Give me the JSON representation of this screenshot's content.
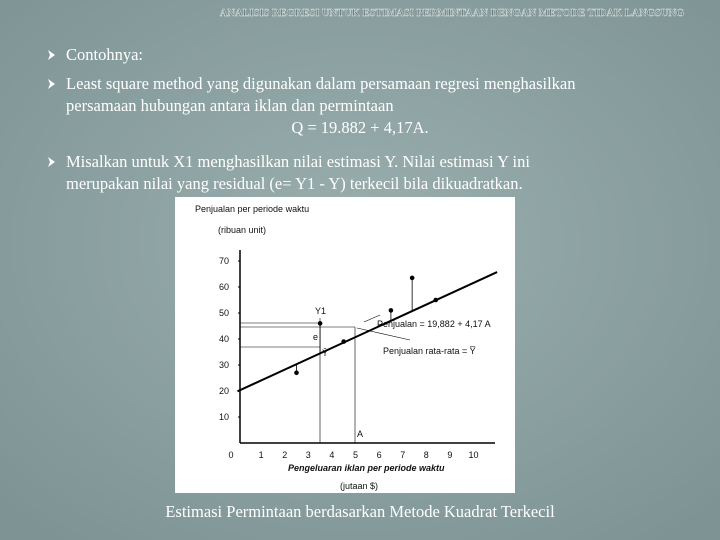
{
  "header": {
    "title": "ANALISIS REGRESI UNTUK ESTIMASI PERMINTAAN DENGAN METODE TIDAK LANGSUNG"
  },
  "bullets": [
    {
      "lines": [
        "Contohnya:"
      ]
    },
    {
      "lines": [
        "Least square method yang digunakan dalam persamaan regresi menghasilkan",
        "persamaan hubungan antara iklan dan permintaan"
      ]
    },
    {
      "lines": [
        "Misalkan untuk X1 menghasilkan nilai estimasi Y. Nilai estimasi Y ini",
        "merupakan nilai yang residual (e= Y1 - Y) terkecil bila dikuadratkan."
      ]
    }
  ],
  "equation": "Q = 19.882 + 4,17A.",
  "figure": {
    "y_label": "Penjualan per periode waktu",
    "y_unit": "(ribuan unit)",
    "x_label": "Pengeluaran iklan per periode waktu",
    "x_unit": "(jutaan $)",
    "xticks": [
      0,
      1,
      2,
      3,
      4,
      5,
      6,
      7,
      8,
      9,
      10
    ],
    "yticks": [
      10,
      20,
      30,
      40,
      50,
      60,
      70
    ],
    "intercept": 19.882,
    "slope": 4.17,
    "points": [
      {
        "x": 2.5,
        "y": 27
      },
      {
        "x": 3.5,
        "y": 46
      },
      {
        "x": 4.5,
        "y": 39
      },
      {
        "x": 6.5,
        "y": 51
      },
      {
        "x": 7.4,
        "y": 63.5
      },
      {
        "x": 8.4,
        "y": 55
      }
    ],
    "annotations": [
      "Y1",
      "e",
      "Ŷ",
      "A",
      "Penjualan = 19,882 + 4,17 A",
      "Penjualan rata-rata = Y̅"
    ]
  },
  "caption": "Estimasi Permintaan berdasarkan Metode Kuadrat Terkecil"
}
